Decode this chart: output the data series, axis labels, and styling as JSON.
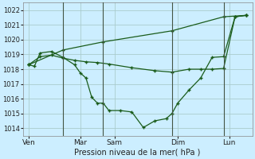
{
  "xlabel": "Pression niveau de la mer( hPa )",
  "background_color": "#cceeff",
  "grid_color": "#aacccc",
  "line_color": "#1a5c1a",
  "vline_color": "#445544",
  "ylim": [
    1013.5,
    1022.5
  ],
  "xlim": [
    0,
    20
  ],
  "yticks": [
    1014,
    1015,
    1016,
    1017,
    1018,
    1019,
    1020,
    1021,
    1022
  ],
  "day_labels": [
    "Ven",
    "Mar",
    "Sam",
    "Dim",
    "Lun"
  ],
  "day_x": [
    0.5,
    5,
    8,
    13.5,
    18
  ],
  "vline_x": [
    3.5,
    7,
    13,
    17.5
  ],
  "line_upper_x": [
    0.5,
    3.5,
    7,
    13,
    17.5,
    19.5
  ],
  "line_upper_y": [
    1018.3,
    1019.3,
    1019.85,
    1020.6,
    1021.55,
    1021.65
  ],
  "line_mid_x": [
    0.5,
    1.5,
    2.5,
    3.5,
    4.5,
    5.5,
    6.5,
    7.5,
    9.5,
    11.5,
    13.0,
    14.5,
    15.5,
    16.5,
    17.5,
    18.5,
    19.5
  ],
  "line_mid_y": [
    1018.3,
    1018.85,
    1018.95,
    1018.75,
    1018.6,
    1018.5,
    1018.45,
    1018.35,
    1018.1,
    1017.9,
    1017.8,
    1018.0,
    1018.0,
    1018.0,
    1018.05,
    1021.55,
    1021.65
  ],
  "line_low_x": [
    0.5,
    1.0,
    1.5,
    2.5,
    3.5,
    4.5,
    5.0,
    5.5,
    6.0,
    6.5,
    7.0,
    7.5,
    8.5,
    9.5,
    10.5,
    11.5,
    12.5,
    13.0,
    13.5,
    14.5,
    15.5,
    16.5,
    17.5,
    18.5,
    19.5
  ],
  "line_low_y": [
    1018.3,
    1018.2,
    1019.1,
    1019.2,
    1018.8,
    1018.3,
    1017.75,
    1017.4,
    1016.1,
    1015.7,
    1015.7,
    1015.2,
    1015.2,
    1015.1,
    1014.05,
    1014.5,
    1014.65,
    1015.0,
    1015.7,
    1016.6,
    1017.4,
    1018.8,
    1018.85,
    1021.55,
    1021.65
  ]
}
